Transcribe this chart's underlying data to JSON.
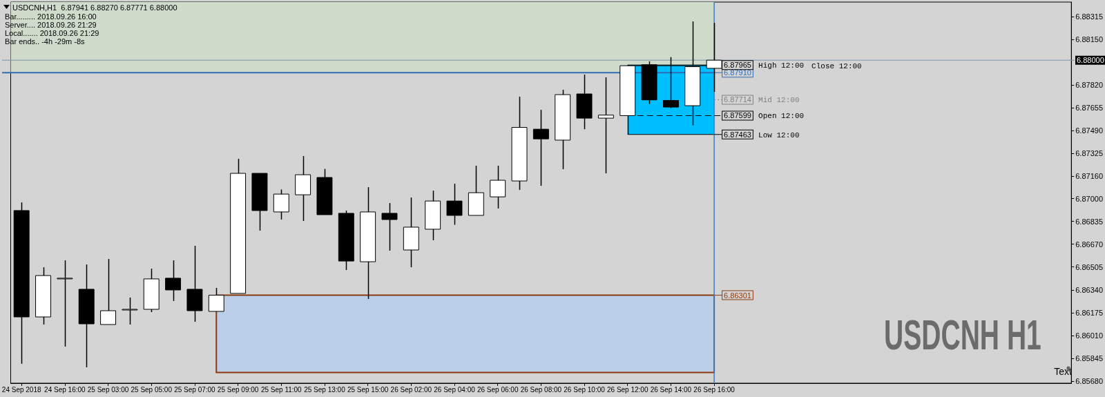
{
  "chart_data": {
    "type": "candlestick",
    "title": "USDCNH,H1  6.87941 6.88270 6.87771 6.88000",
    "categories": [
      "24 Sep 2018",
      null,
      "24 Sep 16:00",
      null,
      "25 Sep 03:00",
      null,
      "25 Sep 05:00",
      null,
      "25 Sep 07:00",
      null,
      "25 Sep 09:00",
      null,
      "25 Sep 11:00",
      null,
      "25 Sep 13:00",
      null,
      "25 Sep 15:00",
      null,
      "26 Sep 02:00",
      null,
      "26 Sep 04:00",
      null,
      "26 Sep 06:00",
      null,
      "26 Sep 08:00",
      null,
      "26 Sep 10:00",
      null,
      "26 Sep 12:00",
      null,
      "26 Sep 14:00",
      null,
      "26 Sep 16:00",
      null,
      null,
      null,
      null,
      null,
      null,
      null,
      null,
      null,
      null,
      null,
      null,
      null,
      null,
      null,
      null
    ],
    "ohlc": [
      [
        6.86913,
        6.86972,
        6.85805,
        6.86144
      ],
      [
        6.86144,
        6.86503,
        6.86089,
        6.86443
      ],
      [
        6.86424,
        6.86553,
        6.8593,
        6.86424
      ],
      [
        6.86344,
        6.86523,
        6.8578,
        6.86094
      ],
      [
        6.86089,
        6.86563,
        6.86089,
        6.86189
      ],
      [
        6.86199,
        6.86284,
        6.86089,
        6.86199
      ],
      [
        6.86199,
        6.86493,
        6.86179,
        6.86419
      ],
      [
        6.86424,
        6.86553,
        6.86259,
        6.86339
      ],
      [
        6.86344,
        6.86658,
        6.86109,
        6.86189
      ],
      [
        6.86184,
        6.86354,
        6.86184,
        6.86301
      ],
      [
        6.86314,
        6.87287,
        6.86314,
        6.87182
      ],
      [
        6.87182,
        6.87182,
        6.86768,
        6.86913
      ],
      [
        6.86903,
        6.87065,
        6.86848,
        6.87032
      ],
      [
        6.87027,
        6.87307,
        6.86838,
        6.87172
      ],
      [
        6.87152,
        6.87214,
        6.86883,
        6.86883
      ],
      [
        6.86893,
        6.86913,
        6.86483,
        6.86548
      ],
      [
        6.86543,
        6.87082,
        6.86274,
        6.86903
      ],
      [
        6.86893,
        6.86967,
        6.86623,
        6.86848
      ],
      [
        6.86628,
        6.87007,
        6.86503,
        6.86793
      ],
      [
        6.86778,
        6.87057,
        6.86698,
        6.86982
      ],
      [
        6.86982,
        6.87107,
        6.8681,
        6.86878
      ],
      [
        6.86878,
        6.87237,
        6.86878,
        6.87042
      ],
      [
        6.87012,
        6.87237,
        6.86928,
        6.87132
      ],
      [
        6.87127,
        6.87736,
        6.87062,
        6.87514
      ],
      [
        6.87501,
        6.87641,
        6.87092,
        6.87431
      ],
      [
        6.87422,
        6.87786,
        6.87212,
        6.87751
      ],
      [
        6.87756,
        6.87896,
        6.87501,
        6.87581
      ],
      [
        6.87581,
        6.87876,
        6.87182,
        6.87603
      ],
      [
        6.87599,
        6.87965,
        6.87463,
        6.8796
      ],
      [
        6.87967,
        6.87991,
        6.87683,
        6.87713
      ],
      [
        6.87709,
        6.88022,
        6.87653,
        6.87661
      ],
      [
        6.87671,
        6.8828,
        6.87529,
        6.87953
      ],
      [
        6.87941,
        6.8827,
        6.87771,
        6.88
      ],
      null,
      null,
      null,
      null,
      null,
      null,
      null,
      null,
      null,
      null,
      null,
      null,
      null,
      null,
      null,
      null
    ],
    "ylim": [
      6.85665,
      6.8842
    ],
    "yticks": [
      {
        "value": 6.8568,
        "label": "6.85680"
      },
      6.85845,
      {
        "value": 6.8601,
        "label": "6.86010"
      },
      6.86175,
      {
        "value": 6.8634,
        "label": "6.86340"
      },
      6.86505,
      {
        "value": 6.8667,
        "label": "6.86670"
      },
      6.86835,
      {
        "value": 6.87,
        "label": "6.87000"
      },
      {
        "value": 6.8716,
        "label": "6.87160"
      },
      6.87325,
      {
        "value": 6.8749,
        "label": "6.87490"
      },
      6.87655,
      {
        "value": 6.8782,
        "label": "6.87820"
      },
      {
        "value": 6.8815,
        "label": "6.88150"
      },
      6.88315
    ],
    "bands": [
      {
        "axis": "y",
        "from": 6.8791,
        "to": 6.8842,
        "label": "6.87910",
        "color": "#cfdccb"
      },
      {
        "axis": "y",
        "from": 6.85742,
        "to": 6.86301,
        "label": "6.86301",
        "color": "#bbcee7"
      },
      {
        "axis": "y",
        "from": 6.87463,
        "to": 6.87965,
        "color": "#00bfff"
      }
    ],
    "ref_lines": [
      {
        "axis": "y",
        "value": 6.87965,
        "label": "6.87965",
        "color": "#000000"
      },
      {
        "axis": "y",
        "value": 6.8796,
        "color": "#000000"
      },
      {
        "axis": "y",
        "value": 6.87714,
        "label": "6.87714",
        "color": "#808080",
        "line_style": "dotted"
      },
      {
        "axis": "y",
        "value": 6.87599,
        "label": "6.87599",
        "color": "#000000",
        "line_style": "dashed"
      },
      {
        "axis": "y",
        "value": 6.87463,
        "label": "6.87463",
        "color": "#000000",
        "line_style": "solid"
      },
      {
        "axis": "y",
        "value": 6.88,
        "label": "6.88000",
        "color": "#7b93ad"
      }
    ],
    "annotations": [
      "Bar......... 2018.09.26 16:00",
      "Server.... 2018.09.26 21:29",
      "Local....... 2018.09.26 21:29",
      "Bar ends.. -4h -29m -8s",
      "USDCNH H1",
      "Text",
      "High 12:00",
      "Close 12:00",
      "Mid 12:00",
      "Open 12:00",
      "Low 12:00"
    ]
  }
}
